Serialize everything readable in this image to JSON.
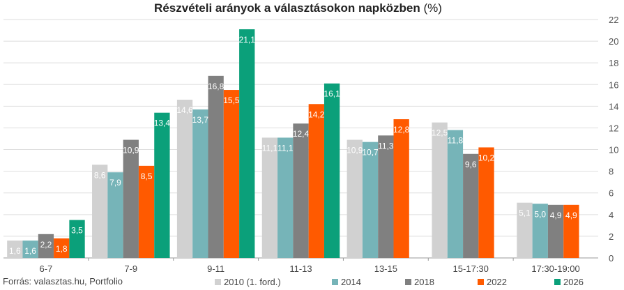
{
  "title_main": "Részvételi arányok a választásokon napközben",
  "title_unit": "(%)",
  "source": "Forrás: valasztas.hu, Portfolio",
  "chart_data": {
    "type": "bar",
    "title": "Részvételi arányok a választásokon napközben (%)",
    "categories": [
      "6-7",
      "7-9",
      "9-11",
      "11-13",
      "13-15",
      "15-17:30",
      "17:30-19:00"
    ],
    "ylim": [
      0,
      22
    ],
    "yticks": [
      0,
      2,
      4,
      6,
      8,
      10,
      12,
      14,
      16,
      18,
      20,
      22
    ],
    "grid": true,
    "y_axis_side": "right",
    "legend_position": "bottom",
    "series": [
      {
        "name": "2010 (1. ford.)",
        "color": "#d1d1d1",
        "values": [
          1.6,
          8.6,
          14.6,
          11.1,
          10.9,
          12.5,
          5.1
        ],
        "labels": [
          "1,6",
          "8,6",
          "14,6",
          "11,1",
          "10,9",
          "12,5",
          "5,1"
        ]
      },
      {
        "name": "2014",
        "color": "#76b4b8",
        "values": [
          1.6,
          7.9,
          13.7,
          11.1,
          10.7,
          11.8,
          5.0
        ],
        "labels": [
          "1,6",
          "7,9",
          "13,7",
          "11,1",
          "10,7",
          "11,8",
          "5,0"
        ]
      },
      {
        "name": "2018",
        "color": "#808080",
        "values": [
          2.2,
          10.9,
          16.8,
          12.4,
          11.3,
          9.6,
          4.9
        ],
        "labels": [
          "2,2",
          "10,9",
          "16,8",
          "12,4",
          "11,3",
          "9,6",
          "4,9"
        ]
      },
      {
        "name": "2022",
        "color": "#ff5a00",
        "values": [
          1.8,
          8.5,
          15.5,
          14.2,
          12.8,
          10.2,
          4.9
        ],
        "labels": [
          "1,8",
          "8,5",
          "15,5",
          "14,2",
          "12,8",
          "10,2",
          "4,9"
        ]
      },
      {
        "name": "2026",
        "color": "#0ba07a",
        "values": [
          3.5,
          13.4,
          21.1,
          16.1,
          null,
          null,
          null
        ],
        "labels": [
          "3,5",
          "13,4",
          "21,1",
          "16,1",
          null,
          null,
          null
        ]
      }
    ]
  }
}
